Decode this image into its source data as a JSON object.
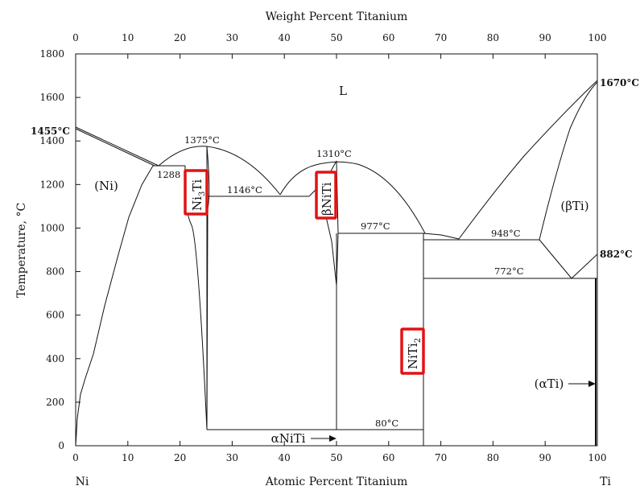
{
  "axes": {
    "top_title": "Weight Percent Titanium",
    "bottom_title": "Atomic Percent Titanium",
    "left_title": "Temperature, °C",
    "bottom_left_element": "Ni",
    "bottom_right_element": "Ti",
    "bottom_ticks": [
      "0",
      "10",
      "20",
      "30",
      "40",
      "50",
      "60",
      "70",
      "80",
      "90",
      "100"
    ],
    "top_ticks": [
      "0",
      "10",
      "20",
      "30",
      "40",
      "50",
      "60",
      "70",
      "80",
      "90",
      "100"
    ],
    "left_ticks": [
      "0",
      "200",
      "400",
      "600",
      "800",
      "1000",
      "1200",
      "1400",
      "1600",
      "1800"
    ]
  },
  "regions": {
    "liquid": "L",
    "ni_solid": "(Ni)",
    "beta_ti": "(βTi)",
    "alpha_ti": "(αTi)",
    "alpha_niti": "αNiTi"
  },
  "temperatures": {
    "ni_melt": "1455°C",
    "ti_melt": "1670°C",
    "ti_transus": "882°C",
    "t1288": "1288",
    "t1375": "1375°C",
    "t1146": "1146°C",
    "t1310": "1310°C",
    "t977": "977°C",
    "t948": "948°C",
    "t772": "772°C",
    "t80": "80°C"
  },
  "highlighted_phases": {
    "ni3ti_main": "Ni",
    "ni3ti_sub": "3",
    "ni3ti_tail": "Ti",
    "beta_niti": "βNiTi",
    "niti2_main": "NiTi",
    "niti2_sub": "2"
  },
  "highlight_color": "#e31212"
}
